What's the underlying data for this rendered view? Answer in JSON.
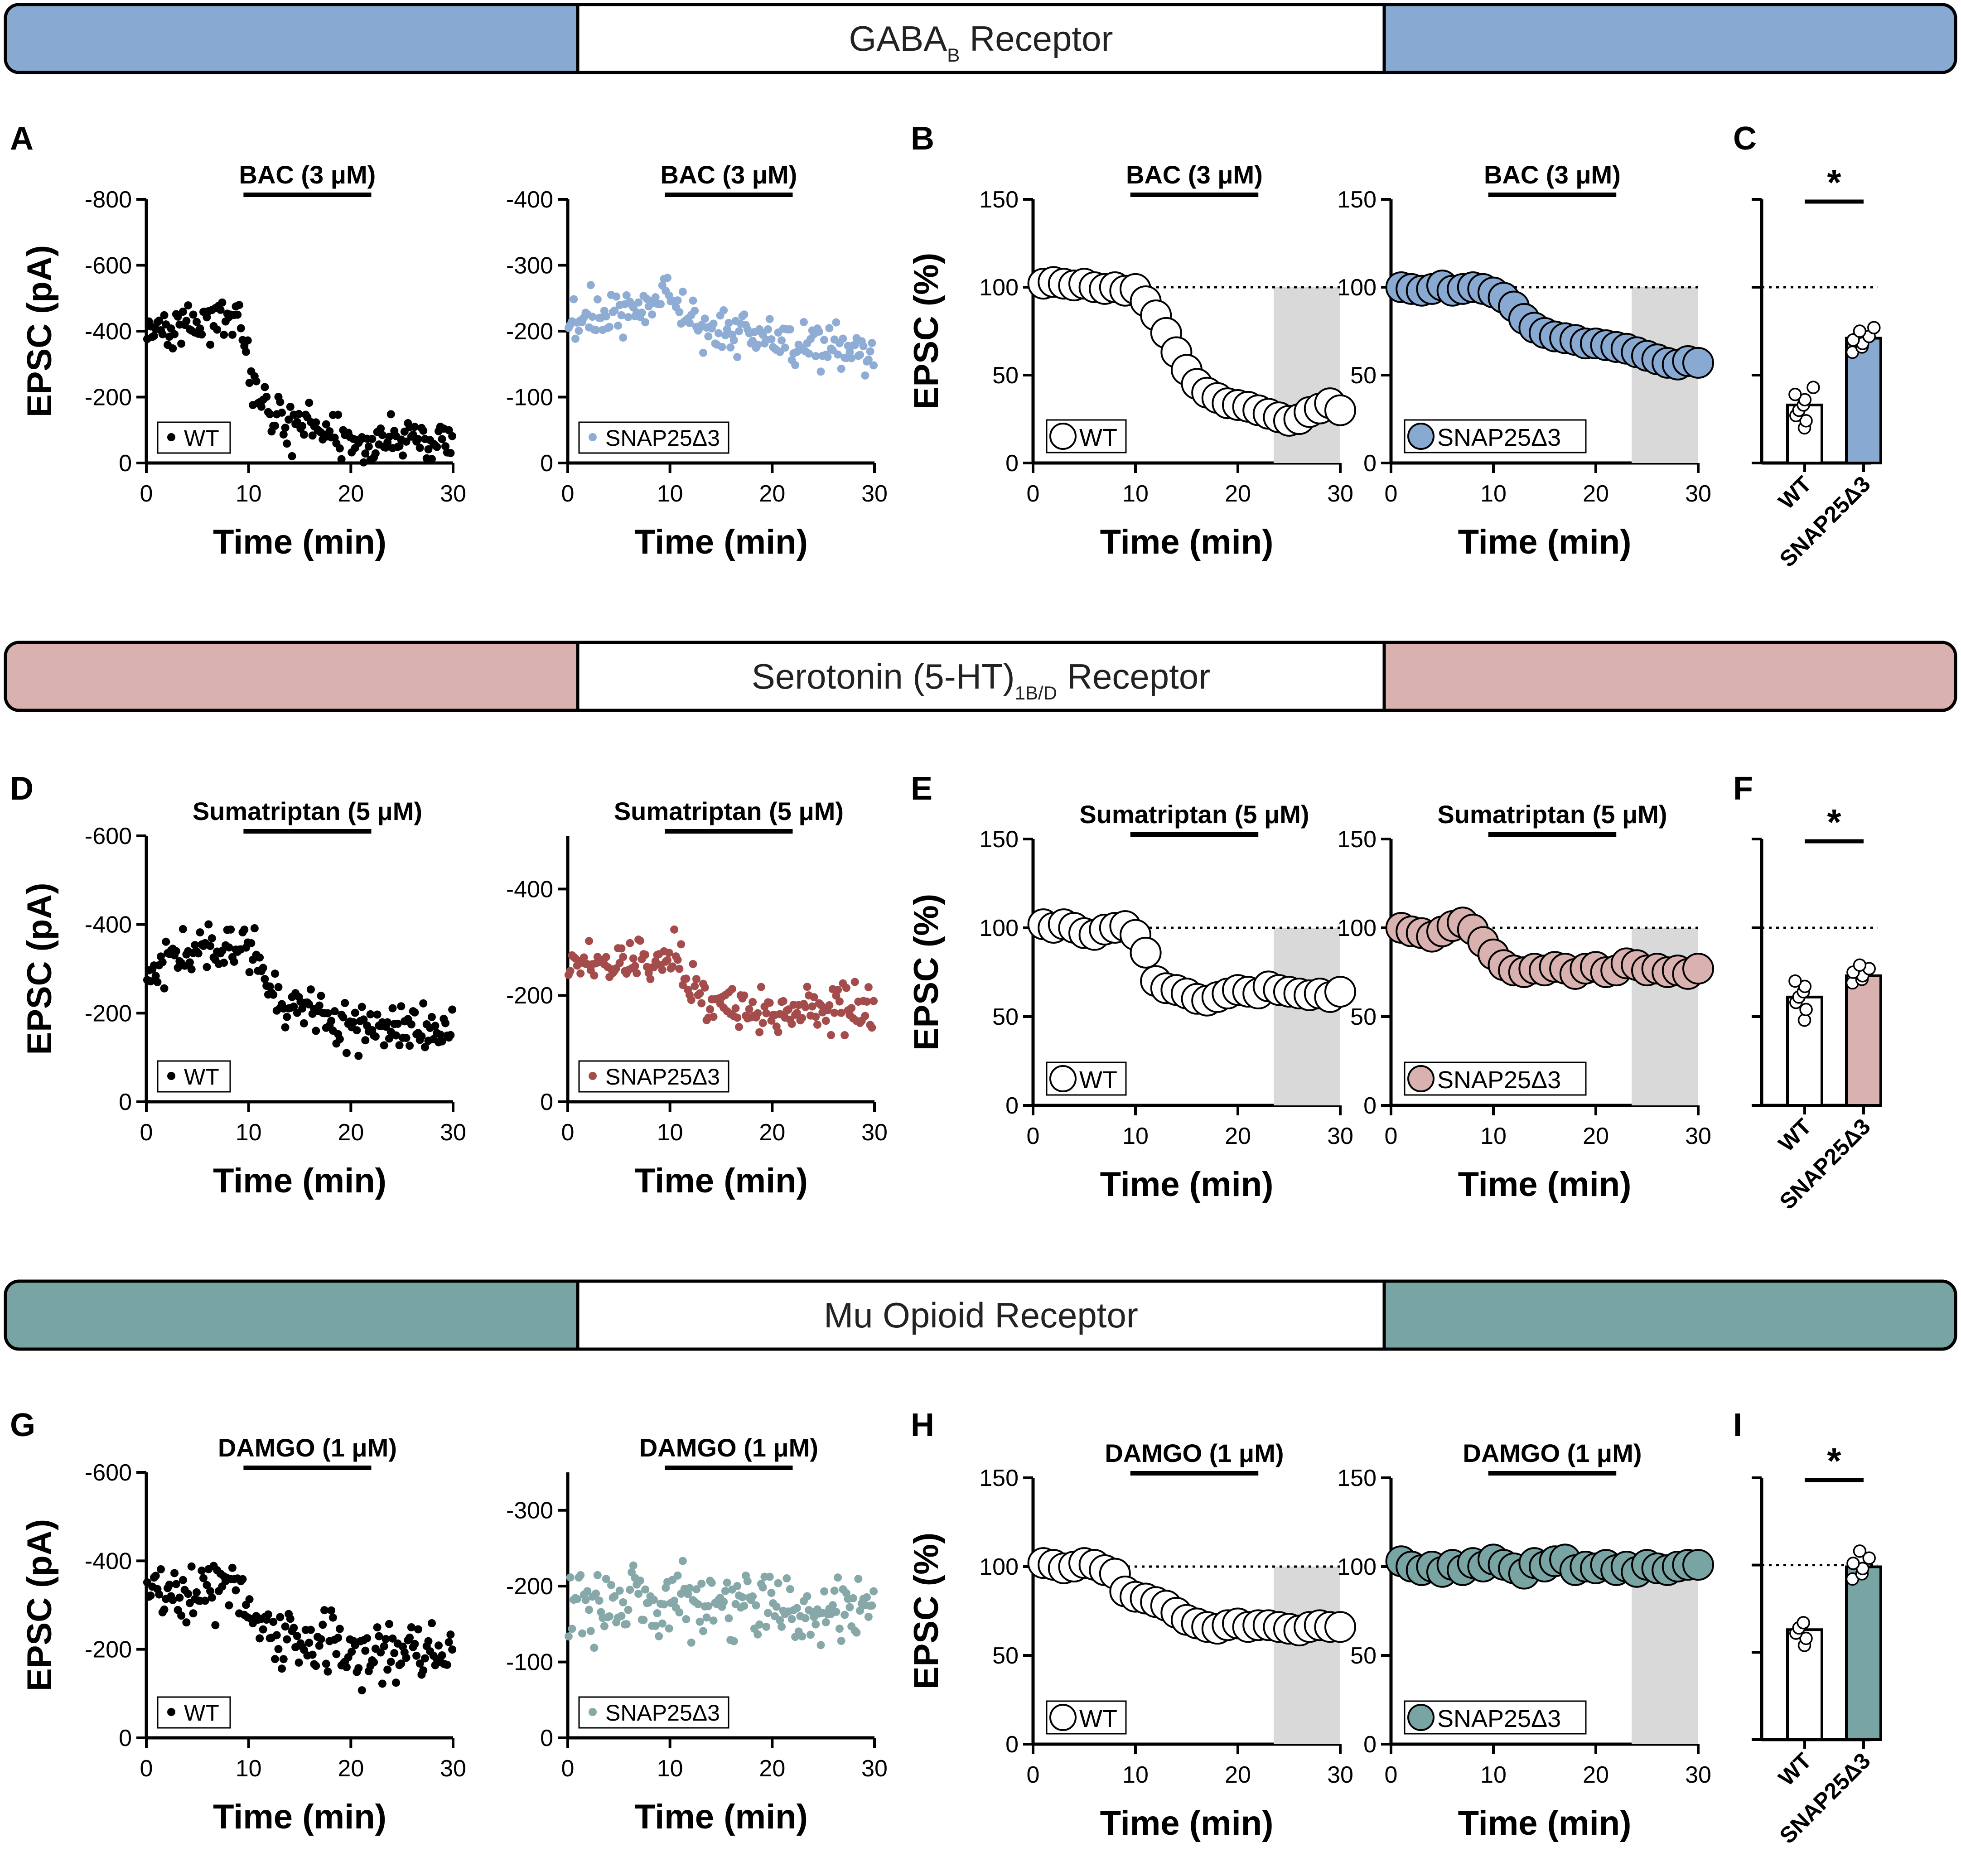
{
  "colors": {
    "gaba": "#88a9d2",
    "serotonin": "#d9b2b0",
    "opioid": "#78a4a3",
    "wt": "#000000",
    "blue_dot": "#8eacd4",
    "red_dot": "#a44c4c",
    "teal_dot": "#86a8a8",
    "shade": "#d9d9d9"
  },
  "banners": [
    {
      "id": "gaba",
      "main": "GABA",
      "sub": "B",
      "tail": " Receptor"
    },
    {
      "id": "serotonin",
      "main": "Serotonin (5-HT)",
      "sub": "1B/D",
      "tail": " Receptor"
    },
    {
      "id": "opioid",
      "main": "Mu Opioid Receptor",
      "sub": "",
      "tail": ""
    }
  ],
  "panel_letters": [
    "A",
    "B",
    "C",
    "D",
    "E",
    "F",
    "G",
    "H",
    "I"
  ],
  "labels": {
    "time_axis": "Time (min)",
    "epsc_pa": "EPSC (pA)",
    "epsc_pct": "EPSC (%)",
    "wt": "WT",
    "mutant": "SNAP25Δ3",
    "sig": "*"
  },
  "drugs": {
    "bac": "BAC (3 μM)",
    "suma": "Sumatriptan (5 μM)",
    "damgo": "DAMGO (1 μM)"
  },
  "chart_data": [
    {
      "id": "A-WT",
      "type": "scatter",
      "title": "BAC (3 μM)",
      "xlabel": "Time (min)",
      "ylabel": "EPSC (pA)",
      "xlim": [
        0,
        30
      ],
      "ylim": [
        0,
        -800
      ],
      "yticks": [
        0,
        -200,
        -400,
        -600,
        -800
      ],
      "xticks": [
        0,
        10,
        20,
        30
      ],
      "legend": "WT",
      "drug_bar": [
        9.5,
        22
      ],
      "y_profile": [
        [
          0,
          -400
        ],
        [
          9,
          -450
        ],
        [
          10,
          -280
        ],
        [
          12,
          -140
        ],
        [
          20,
          -70
        ],
        [
          30,
          -75
        ]
      ],
      "noise": 55,
      "count": 180,
      "seed": 11
    },
    {
      "id": "A-SNAP",
      "type": "scatter",
      "title": "BAC (3 μM)",
      "xlabel": "Time (min)",
      "ylabel": "",
      "xlim": [
        0,
        30
      ],
      "ylim": [
        0,
        -400
      ],
      "yticks": [
        0,
        -100,
        -200,
        -300,
        -400
      ],
      "xticks": [
        0,
        10,
        20,
        30
      ],
      "legend": "SNAP25Δ3",
      "drug_bar": [
        9.5,
        22
      ],
      "y_profile": [
        [
          0,
          -220
        ],
        [
          10,
          -240
        ],
        [
          14,
          -205
        ],
        [
          22,
          -180
        ],
        [
          30,
          -160
        ]
      ],
      "noise": 30,
      "count": 180,
      "seed": 23
    },
    {
      "id": "B-WT",
      "type": "line",
      "title": "BAC (3 μM)",
      "xlabel": "Time (min)",
      "ylabel": "EPSC (%)",
      "xlim": [
        0,
        30
      ],
      "ylim": [
        0,
        150
      ],
      "yticks": [
        0,
        50,
        100,
        150
      ],
      "xticks": [
        0,
        10,
        20,
        30
      ],
      "legend": "WT",
      "drug_bar": [
        9.5,
        22
      ],
      "shade": [
        23.5,
        30
      ],
      "baseline": 100,
      "x": [
        1,
        2,
        3,
        4,
        5,
        6,
        7,
        8,
        9,
        10,
        11,
        12,
        13,
        14,
        15,
        16,
        17,
        18,
        19,
        20,
        21,
        22,
        23,
        24,
        25,
        26,
        27,
        28,
        29,
        30
      ],
      "y": [
        102,
        103,
        102,
        101,
        102,
        100,
        99,
        100,
        98,
        99,
        92,
        84,
        74,
        63,
        53,
        45,
        40,
        37,
        34,
        33,
        32,
        30,
        28,
        26,
        24,
        25,
        29,
        31,
        34,
        30
      ]
    },
    {
      "id": "B-SNAP",
      "type": "line",
      "title": "BAC (3 μM)",
      "xlabel": "Time (min)",
      "ylabel": "",
      "xlim": [
        0,
        30
      ],
      "ylim": [
        0,
        150
      ],
      "yticks": [
        0,
        50,
        100,
        150
      ],
      "xticks": [
        0,
        10,
        20,
        30
      ],
      "legend": "SNAP25Δ3",
      "drug_bar": [
        9.5,
        22
      ],
      "shade": [
        23.5,
        30
      ],
      "baseline": 100,
      "x": [
        1,
        2,
        3,
        4,
        5,
        6,
        7,
        8,
        9,
        10,
        11,
        12,
        13,
        14,
        15,
        16,
        17,
        18,
        19,
        20,
        21,
        22,
        23,
        24,
        25,
        26,
        27,
        28,
        29,
        30
      ],
      "y": [
        100,
        99,
        98,
        99,
        101,
        98,
        99,
        100,
        99,
        97,
        94,
        89,
        82,
        77,
        74,
        72,
        71,
        70,
        68,
        68,
        67,
        66,
        65,
        63,
        61,
        59,
        57,
        56,
        58,
        57
      ]
    },
    {
      "id": "C",
      "type": "bar",
      "title": "",
      "xlabel": "",
      "ylabel": "",
      "categories": [
        "WT",
        "SNAP25Δ3"
      ],
      "values": [
        33,
        71
      ],
      "ylim": [
        0,
        150
      ],
      "baseline": 100,
      "significance": "*",
      "points": [
        [
          20,
          24,
          27,
          30,
          33,
          36,
          39,
          43
        ],
        [
          63,
          66,
          68,
          70,
          72,
          75,
          77
        ]
      ]
    },
    {
      "id": "D-WT",
      "type": "scatter",
      "title": "Sumatriptan (5 μM)",
      "xlabel": "Time (min)",
      "ylabel": "EPSC (pA)",
      "xlim": [
        0,
        30
      ],
      "ylim": [
        0,
        -600
      ],
      "yticks": [
        0,
        -200,
        -400,
        -600
      ],
      "xticks": [
        0,
        10,
        20,
        30
      ],
      "legend": "WT",
      "drug_bar": [
        9.5,
        22
      ],
      "y_profile": [
        [
          0,
          -320
        ],
        [
          10,
          -350
        ],
        [
          13,
          -220
        ],
        [
          20,
          -175
        ],
        [
          30,
          -150
        ]
      ],
      "noise": 45,
      "count": 180,
      "seed": 37
    },
    {
      "id": "D-SNAP",
      "type": "scatter",
      "title": "Sumatriptan (5 μM)",
      "xlabel": "Time (min)",
      "ylabel": "",
      "xlim": [
        0,
        30
      ],
      "ylim": [
        0,
        -500
      ],
      "yticks": [
        0,
        -200,
        -400
      ],
      "xticks": [
        0,
        10,
        20,
        30
      ],
      "legend": "SNAP25Δ3",
      "drug_bar": [
        9.5,
        22
      ],
      "y_profile": [
        [
          0,
          -260
        ],
        [
          11,
          -270
        ],
        [
          14,
          -175
        ],
        [
          22,
          -180
        ],
        [
          30,
          -165
        ]
      ],
      "noise": 35,
      "count": 180,
      "seed": 41
    },
    {
      "id": "E-WT",
      "type": "line",
      "title": "Sumatriptan (5 μM)",
      "xlabel": "Time (min)",
      "ylabel": "EPSC (%)",
      "xlim": [
        0,
        30
      ],
      "ylim": [
        0,
        150
      ],
      "yticks": [
        0,
        50,
        100,
        150
      ],
      "xticks": [
        0,
        10,
        20,
        30
      ],
      "legend": "WT",
      "drug_bar": [
        9.5,
        22
      ],
      "shade": [
        23.5,
        30
      ],
      "baseline": 100,
      "x": [
        1,
        2,
        3,
        4,
        5,
        6,
        7,
        8,
        9,
        10,
        11,
        12,
        13,
        14,
        15,
        16,
        17,
        18,
        19,
        20,
        21,
        22,
        23,
        24,
        25,
        26,
        27,
        28,
        29,
        30
      ],
      "y": [
        102,
        100,
        102,
        100,
        97,
        96,
        99,
        100,
        101,
        96,
        86,
        70,
        66,
        65,
        63,
        60,
        59,
        61,
        63,
        65,
        64,
        63,
        67,
        65,
        64,
        63,
        62,
        63,
        61,
        64
      ]
    },
    {
      "id": "E-SNAP",
      "type": "line",
      "title": "Sumatriptan (5 μM)",
      "xlabel": "Time (min)",
      "ylabel": "",
      "xlim": [
        0,
        30
      ],
      "ylim": [
        0,
        150
      ],
      "yticks": [
        0,
        50,
        100,
        150
      ],
      "xticks": [
        0,
        10,
        20,
        30
      ],
      "legend": "SNAP25Δ3",
      "drug_bar": [
        9.5,
        22
      ],
      "shade": [
        23.5,
        30
      ],
      "baseline": 100,
      "x": [
        1,
        2,
        3,
        4,
        5,
        6,
        7,
        8,
        9,
        10,
        11,
        12,
        13,
        14,
        15,
        16,
        17,
        18,
        19,
        20,
        21,
        22,
        23,
        24,
        25,
        26,
        27,
        28,
        29,
        30
      ],
      "y": [
        100,
        98,
        97,
        95,
        98,
        101,
        103,
        99,
        92,
        85,
        79,
        76,
        75,
        77,
        76,
        78,
        77,
        74,
        77,
        78,
        75,
        76,
        80,
        79,
        76,
        77,
        75,
        76,
        74,
        77
      ]
    },
    {
      "id": "F",
      "type": "bar",
      "title": "",
      "xlabel": "",
      "ylabel": "",
      "categories": [
        "WT",
        "SNAP25Δ3"
      ],
      "values": [
        61,
        73
      ],
      "ylim": [
        0,
        150
      ],
      "baseline": 100,
      "significance": "*",
      "points": [
        [
          48,
          54,
          58,
          61,
          64,
          67,
          70
        ],
        [
          69,
          71,
          73,
          75,
          77,
          79
        ]
      ]
    },
    {
      "id": "G-WT",
      "type": "scatter",
      "title": "DAMGO (1 μM)",
      "xlabel": "Time (min)",
      "ylabel": "EPSC (pA)",
      "xlim": [
        0,
        30
      ],
      "ylim": [
        0,
        -600
      ],
      "yticks": [
        0,
        -200,
        -400,
        -600
      ],
      "xticks": [
        0,
        10,
        20,
        30
      ],
      "legend": "WT",
      "drug_bar": [
        9.5,
        22
      ],
      "y_profile": [
        [
          0,
          -320
        ],
        [
          9,
          -340
        ],
        [
          12,
          -230
        ],
        [
          20,
          -200
        ],
        [
          30,
          -190
        ]
      ],
      "noise": 55,
      "count": 180,
      "seed": 53
    },
    {
      "id": "G-SNAP",
      "type": "scatter",
      "title": "DAMGO (1 μM)",
      "xlabel": "Time (min)",
      "ylabel": "",
      "xlim": [
        0,
        30
      ],
      "ylim": [
        0,
        -350
      ],
      "yticks": [
        0,
        -100,
        -200,
        -300
      ],
      "xticks": [
        0,
        10,
        20,
        30
      ],
      "legend": "SNAP25Δ3",
      "drug_bar": [
        9.5,
        22
      ],
      "y_profile": [
        [
          0,
          -175
        ],
        [
          15,
          -175
        ],
        [
          30,
          -172
        ]
      ],
      "noise": 35,
      "count": 180,
      "seed": 67
    },
    {
      "id": "H-WT",
      "type": "line",
      "title": "DAMGO (1 μM)",
      "xlabel": "Time (min)",
      "ylabel": "EPSC (%)",
      "xlim": [
        0,
        30
      ],
      "ylim": [
        0,
        150
      ],
      "yticks": [
        0,
        50,
        100,
        150
      ],
      "xticks": [
        0,
        10,
        20,
        30
      ],
      "legend": "WT",
      "drug_bar": [
        9.5,
        22
      ],
      "shade": [
        23.5,
        30
      ],
      "baseline": 100,
      "x": [
        1,
        2,
        3,
        4,
        5,
        6,
        7,
        8,
        9,
        10,
        11,
        12,
        13,
        14,
        15,
        16,
        17,
        18,
        19,
        20,
        21,
        22,
        23,
        24,
        25,
        26,
        27,
        28,
        29,
        30
      ],
      "y": [
        102,
        101,
        99,
        100,
        102,
        101,
        98,
        96,
        86,
        83,
        82,
        80,
        78,
        74,
        70,
        68,
        66,
        65,
        67,
        68,
        66,
        67,
        67,
        66,
        65,
        64,
        66,
        67,
        66,
        66
      ]
    },
    {
      "id": "H-SNAP",
      "type": "line",
      "title": "DAMGO (1 μM)",
      "xlabel": "Time (min)",
      "ylabel": "",
      "xlim": [
        0,
        30
      ],
      "ylim": [
        0,
        150
      ],
      "yticks": [
        0,
        50,
        100,
        150
      ],
      "xticks": [
        0,
        10,
        20,
        30
      ],
      "legend": "SNAP25Δ3",
      "drug_bar": [
        9.5,
        22
      ],
      "shade": [
        23.5,
        30
      ],
      "baseline": 100,
      "x": [
        1,
        2,
        3,
        4,
        5,
        6,
        7,
        8,
        9,
        10,
        11,
        12,
        13,
        14,
        15,
        16,
        17,
        18,
        19,
        20,
        21,
        22,
        23,
        24,
        25,
        26,
        27,
        28,
        29,
        30
      ],
      "y": [
        103,
        100,
        98,
        100,
        97,
        101,
        98,
        102,
        100,
        104,
        101,
        99,
        96,
        102,
        100,
        103,
        104,
        98,
        100,
        99,
        101,
        98,
        100,
        97,
        101,
        99,
        98,
        100,
        101,
        101
      ]
    },
    {
      "id": "I",
      "type": "bar",
      "title": "",
      "xlabel": "",
      "ylabel": "",
      "categories": [
        "WT",
        "SNAP25Δ3"
      ],
      "values": [
        63,
        99
      ],
      "ylim": [
        0,
        150
      ],
      "baseline": 100,
      "significance": "*",
      "points": [
        [
          54,
          58,
          61,
          64,
          67
        ],
        [
          92,
          95,
          98,
          101,
          104,
          108
        ]
      ]
    }
  ]
}
